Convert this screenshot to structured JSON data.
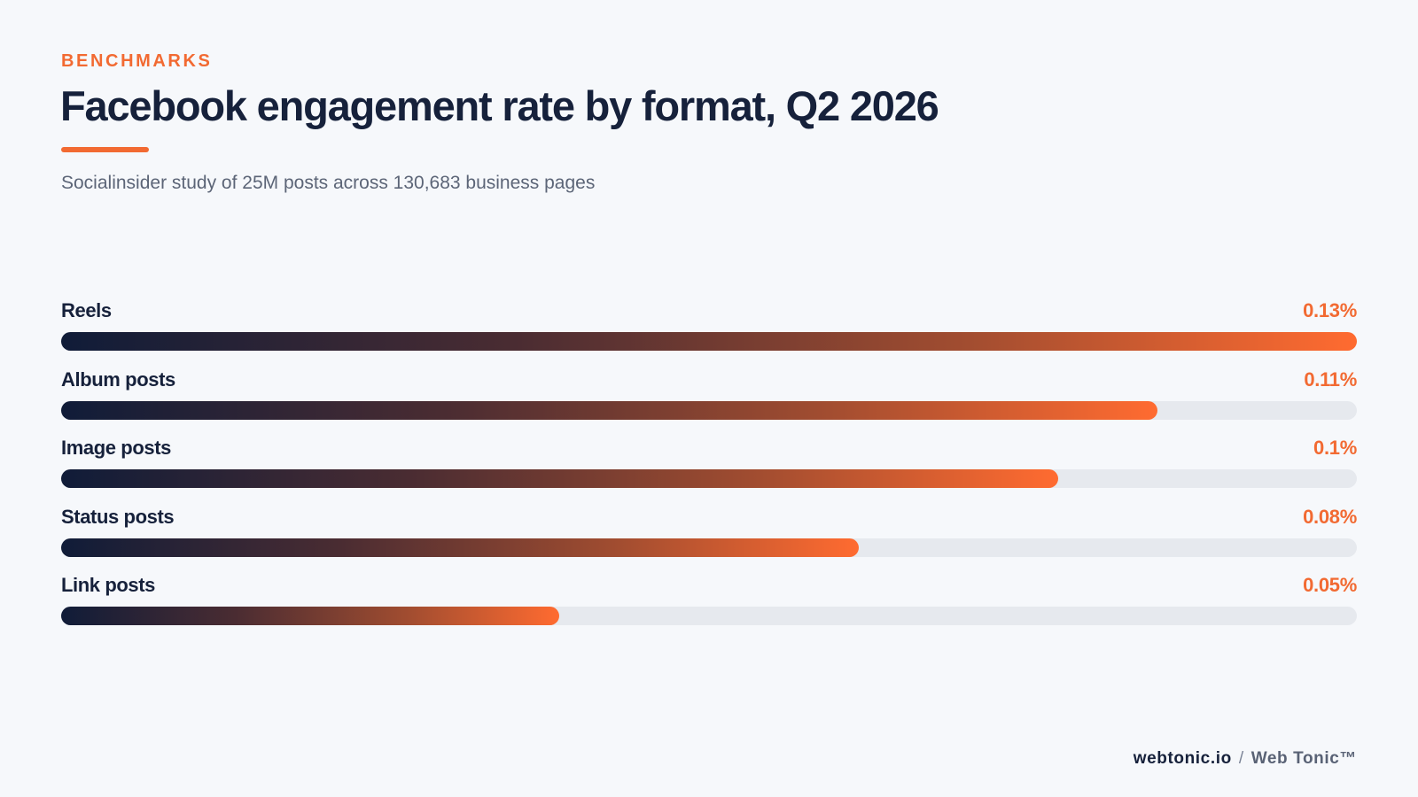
{
  "eyebrow": "BENCHMARKS",
  "title": "Facebook engagement rate by format, Q2 2026",
  "subtitle": "Socialinsider study of 25M posts across 130,683 business pages",
  "footer": {
    "site": "webtonic.io",
    "separator": "/",
    "brand": "Web Tonic™"
  },
  "colors": {
    "accent": "#f26a32",
    "navy": "#16213b",
    "track": "#e6e9ee"
  },
  "chart_data": {
    "type": "bar",
    "orientation": "horizontal",
    "categories": [
      "Reels",
      "Album posts",
      "Image posts",
      "Status posts",
      "Link posts"
    ],
    "values": [
      0.13,
      0.11,
      0.1,
      0.08,
      0.05
    ],
    "value_labels": [
      "0.13%",
      "0.11%",
      "0.1%",
      "0.08%",
      "0.05%"
    ],
    "unit": "%",
    "xlim": [
      0,
      0.13
    ],
    "grid": false,
    "legend": "none"
  }
}
